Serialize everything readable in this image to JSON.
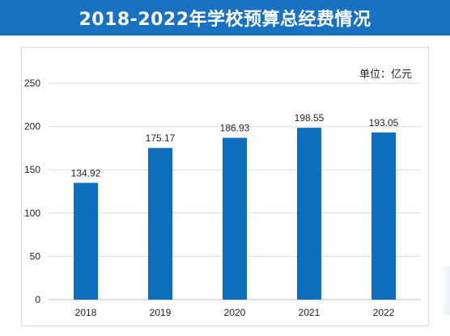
{
  "header": {
    "title": "2018-2022年学校预算总经费情况"
  },
  "unit_label": "单位：亿元",
  "colors": {
    "banner": "#1872c1",
    "bar": "#0e6fbf",
    "grid": "#d9d9d9"
  },
  "chart_data": {
    "type": "bar",
    "categories": [
      "2018",
      "2019",
      "2020",
      "2021",
      "2022"
    ],
    "values": [
      134.92,
      175.17,
      186.93,
      198.55,
      193.05
    ],
    "value_labels": [
      "134.92",
      "175.17",
      "186.93",
      "198.55",
      "193.05"
    ],
    "title": "2018-2022年学校预算总经费情况",
    "xlabel": "",
    "ylabel": "",
    "ylim": [
      0,
      250
    ],
    "yticks": [
      0,
      50,
      100,
      150,
      200,
      250
    ],
    "grid": true,
    "legend": "none"
  }
}
